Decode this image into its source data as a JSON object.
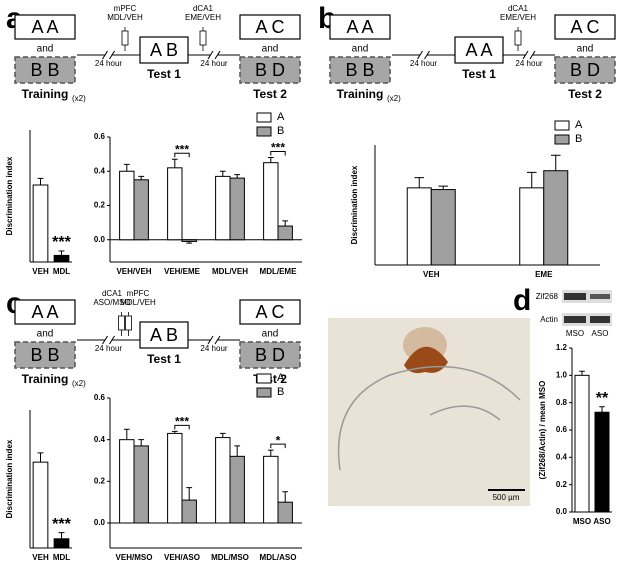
{
  "panel_labels": [
    "a",
    "b",
    "c",
    "d"
  ],
  "diagrams": [
    {
      "training": {
        "top": "A A",
        "and": "and",
        "bottom": "B B",
        "label": "Training",
        "note": "(x2)"
      },
      "delay1": "24 hour",
      "injection1": [
        {
          "site": "mPFC",
          "drug": "MDL/VEH"
        }
      ],
      "test1": {
        "box": "A B",
        "label": "Test 1"
      },
      "injection2": [
        {
          "site": "dCA1",
          "drug": "EME/VEH"
        }
      ],
      "delay2": "24 hour",
      "test2": {
        "top": "A C",
        "and": "and",
        "bottom": "B D",
        "label": "Test 2"
      }
    },
    {
      "training": {
        "top": "A A",
        "and": "and",
        "bottom": "B B",
        "label": "Training",
        "note": "(x2)"
      },
      "delay1": "24 hour",
      "injection1": [],
      "test1": {
        "box": "A A",
        "label": "Test 1"
      },
      "injection2": [
        {
          "site": "dCA1",
          "drug": "EME/VEH"
        }
      ],
      "delay2": "24 hour",
      "test2": {
        "top": "A C",
        "and": "and",
        "bottom": "B D",
        "label": "Test 2"
      }
    },
    {
      "training": {
        "top": "A A",
        "and": "and",
        "bottom": "B B",
        "label": "Training",
        "note": "(x2)"
      },
      "delay1": "24 hour",
      "injection1": [
        {
          "site": "dCA1",
          "drug": "ASO/MSO"
        },
        {
          "site": "mPFC",
          "drug": "MDL/VEH"
        }
      ],
      "test1": {
        "box": "A B",
        "label": "Test 1"
      },
      "injection2": [],
      "delay2": "24 hour",
      "test2": {
        "top": "A C",
        "and": "and",
        "bottom": "B D",
        "label": "Test 2"
      }
    }
  ],
  "image": {
    "scale_bar": "500 µm"
  },
  "blot": {
    "rows": [
      "Zif268",
      "Actin"
    ],
    "lanes": [
      "MSO",
      "ASO"
    ]
  },
  "chart_data": [
    {
      "type": "bar",
      "categories": [
        "VEH",
        "MDL"
      ],
      "values": [
        0.35,
        0.03
      ],
      "errors": [
        0.03,
        0.02
      ],
      "colors": [
        "#ffffff",
        "#000000"
      ],
      "ylim": [
        0,
        0.6
      ],
      "ylabel": "Discrimination index",
      "annotations": [
        {
          "text": "***",
          "category": "MDL"
        }
      ]
    },
    {
      "type": "grouped_bar",
      "categories": [
        "VEH/VEH",
        "VEH/EME",
        "MDL/VEH",
        "MDL/EME"
      ],
      "series": [
        {
          "name": "A",
          "color": "#ffffff",
          "values": [
            0.4,
            0.42,
            0.37,
            0.45
          ],
          "errors": [
            0.04,
            0.05,
            0.03,
            0.03
          ]
        },
        {
          "name": "B",
          "color": "#a0a0a0",
          "values": [
            0.35,
            -0.01,
            0.36,
            0.08
          ],
          "errors": [
            0.02,
            0.01,
            0.02,
            0.03
          ]
        }
      ],
      "ylim": [
        -0.13,
        0.6
      ],
      "yticks": [
        {
          "value": 0,
          "label": "0.0"
        },
        0.2,
        0.4,
        0.6
      ],
      "annotations": [
        {
          "text": "***",
          "category": "VEH/EME"
        },
        {
          "text": "***",
          "category": "MDL/EME"
        }
      ],
      "legend": "top-right"
    },
    {
      "type": "grouped_bar",
      "categories": [
        "VEH",
        "EME"
      ],
      "series": [
        {
          "name": "A",
          "color": "#ffffff",
          "values": [
            0.45,
            0.45
          ],
          "errors": [
            0.06,
            0.09
          ]
        },
        {
          "name": "B",
          "color": "#a0a0a0",
          "values": [
            0.44,
            0.55
          ],
          "errors": [
            0.02,
            0.09
          ]
        }
      ],
      "ylim": [
        0,
        0.7
      ],
      "ylabel": "Discrimination index",
      "legend": "top-right"
    },
    {
      "type": "bar",
      "categories": [
        "VEH",
        "MDL"
      ],
      "values": [
        0.28,
        0.03
      ],
      "errors": [
        0.03,
        0.02
      ],
      "colors": [
        "#ffffff",
        "#000000"
      ],
      "ylim": [
        0,
        0.45
      ],
      "ylabel": "Discrimination index",
      "annotations": [
        {
          "text": "***",
          "category": "MDL"
        }
      ]
    },
    {
      "type": "grouped_bar",
      "categories": [
        "VEH/MSO",
        "VEH/ASO",
        "MDL/MSO",
        "MDL/ASO"
      ],
      "series": [
        {
          "name": "A",
          "color": "#ffffff",
          "values": [
            0.4,
            0.43,
            0.41,
            0.32
          ],
          "errors": [
            0.05,
            0.01,
            0.02,
            0.03
          ]
        },
        {
          "name": "B",
          "color": "#a0a0a0",
          "values": [
            0.37,
            0.11,
            0.32,
            0.1
          ],
          "errors": [
            0.03,
            0.06,
            0.05,
            0.05
          ]
        }
      ],
      "ylim": [
        -0.12,
        0.6
      ],
      "yticks": [
        {
          "value": 0,
          "label": "0.0"
        },
        0.2,
        0.4,
        0.6
      ],
      "annotations": [
        {
          "text": "***",
          "category": "VEH/ASO"
        },
        {
          "text": "*",
          "category": "MDL/ASO"
        }
      ],
      "legend": "top-right"
    },
    {
      "type": "bar",
      "categories": [
        "MSO",
        "ASO"
      ],
      "values": [
        1.0,
        0.73
      ],
      "errors": [
        0.03,
        0.04
      ],
      "colors": [
        "#ffffff",
        "#000000"
      ],
      "ylim": [
        0,
        1.2
      ],
      "yticks": [
        {
          "value": 0,
          "label": "0.0"
        },
        0.2,
        0.4,
        0.6,
        0.8,
        {
          "value": 1,
          "label": "1.0"
        },
        1.2
      ],
      "ylabel": "(Zif268/Actin) / mean MSO",
      "annotations": [
        {
          "text": "**",
          "category": "ASO"
        }
      ]
    }
  ]
}
